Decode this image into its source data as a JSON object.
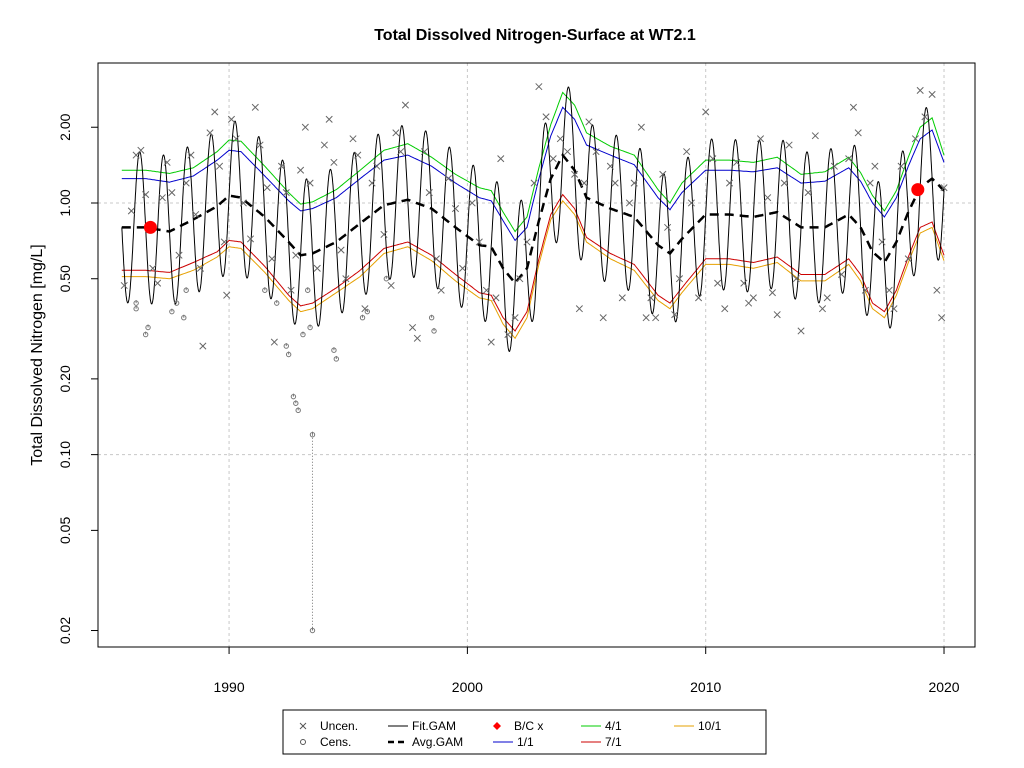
{
  "chart_data": {
    "type": "scatter",
    "title": "Total Dissolved Nitrogen-Surface at WT2.1",
    "xlabel": "",
    "ylabel": "Total Dissolved Nitrogen [mg/L]",
    "y_scale": "log",
    "xlim": [
      1984.5,
      2021.3
    ],
    "ylim": [
      0.0172,
      3.6
    ],
    "x_ticks": [
      1990,
      2000,
      2010,
      2020
    ],
    "x_tick_labels": [
      "1990",
      "2000",
      "2010",
      "2020"
    ],
    "y_ticks": [
      0.02,
      0.05,
      0.1,
      0.2,
      0.5,
      1.0,
      2.0
    ],
    "y_tick_labels": [
      "0.02",
      "0.05",
      "0.10",
      "0.20",
      "0.50",
      "1.00",
      "2.00"
    ],
    "grid": true,
    "legend_placement": "bottom",
    "legend": [
      {
        "label": "Uncen.",
        "symbol": "x",
        "color": "#555555"
      },
      {
        "label": "Cens.",
        "symbol": "circle",
        "color": "#555555"
      },
      {
        "label": "Fit.GAM",
        "symbol": "line",
        "color": "#000000"
      },
      {
        "label": "Avg.GAM",
        "symbol": "dashed",
        "color": "#000000"
      },
      {
        "label": "B/C x",
        "symbol": "diamond",
        "color": "#ff0000"
      },
      {
        "label": "1/1",
        "symbol": "line",
        "color": "#0000cc"
      },
      {
        "label": "4/1",
        "symbol": "line",
        "color": "#00cc00"
      },
      {
        "label": "7/1",
        "symbol": "line",
        "color": "#cc0000"
      },
      {
        "label": "10/1",
        "symbol": "line",
        "color": "#e6a000"
      }
    ],
    "baseline_change_points": [
      {
        "x": 1986.7,
        "y": 0.8
      },
      {
        "x": 2018.9,
        "y": 1.13
      }
    ],
    "avg_gam": {
      "x": [
        1985.5,
        1986.5,
        1987.5,
        1988.5,
        1989.5,
        1990.0,
        1990.5,
        1991.5,
        1992.5,
        1993.0,
        1993.5,
        1994.5,
        1995.5,
        1996.5,
        1997.5,
        1998.5,
        1999.5,
        2000.5,
        2001.0,
        2001.5,
        2002.0,
        2002.5,
        2003.0,
        2003.5,
        2004.0,
        2004.5,
        2005.0,
        2006.0,
        2007.0,
        2008.0,
        2008.5,
        2009.0,
        2010.0,
        2011.0,
        2012.0,
        2013.0,
        2014.0,
        2015.0,
        2016.0,
        2016.5,
        2017.0,
        2017.5,
        2018.0,
        2018.5,
        2019.0,
        2019.5,
        2020.0
      ],
      "y": [
        0.8,
        0.8,
        0.77,
        0.86,
        0.97,
        1.07,
        1.05,
        0.88,
        0.7,
        0.62,
        0.63,
        0.7,
        0.83,
        0.98,
        1.03,
        0.95,
        0.8,
        0.68,
        0.67,
        0.55,
        0.48,
        0.55,
        0.85,
        1.25,
        1.55,
        1.35,
        1.05,
        0.95,
        0.88,
        0.68,
        0.63,
        0.72,
        0.9,
        0.9,
        0.88,
        0.92,
        0.8,
        0.8,
        0.9,
        0.8,
        0.64,
        0.58,
        0.7,
        0.92,
        1.15,
        1.25,
        1.12
      ]
    },
    "series_1_1": {
      "x": [
        1985.5,
        1986.5,
        1987.5,
        1988.5,
        1989.5,
        1990.0,
        1990.5,
        1991.5,
        1992.5,
        1993.0,
        1993.5,
        1994.5,
        1995.5,
        1996.5,
        1997.5,
        1998.5,
        1999.5,
        2000.5,
        2001.0,
        2001.5,
        2002.0,
        2002.5,
        2003.0,
        2003.5,
        2004.0,
        2004.5,
        2005.0,
        2006.0,
        2007.0,
        2008.0,
        2008.5,
        2009.0,
        2010.0,
        2011.0,
        2012.0,
        2013.0,
        2014.0,
        2015.0,
        2016.0,
        2016.5,
        2017.0,
        2017.5,
        2018.0,
        2018.5,
        2019.0,
        2019.5,
        2020.0
      ],
      "y": [
        1.25,
        1.25,
        1.21,
        1.28,
        1.48,
        1.62,
        1.6,
        1.28,
        1.02,
        0.93,
        0.95,
        1.05,
        1.25,
        1.48,
        1.55,
        1.4,
        1.2,
        1.05,
        1.02,
        0.85,
        0.71,
        0.8,
        1.25,
        1.85,
        2.4,
        2.15,
        1.7,
        1.55,
        1.42,
        1.05,
        0.94,
        1.1,
        1.35,
        1.35,
        1.33,
        1.38,
        1.2,
        1.22,
        1.38,
        1.22,
        1.0,
        0.88,
        1.05,
        1.4,
        1.8,
        1.95,
        1.45
      ]
    },
    "series_4_1": {
      "x": [
        1985.5,
        1986.5,
        1987.5,
        1988.5,
        1989.5,
        1990.0,
        1990.5,
        1991.5,
        1992.5,
        1993.0,
        1993.5,
        1994.5,
        1995.5,
        1996.5,
        1997.5,
        1998.5,
        1999.5,
        2000.5,
        2001.0,
        2001.5,
        2002.0,
        2002.5,
        2003.0,
        2003.5,
        2004.0,
        2004.5,
        2005.0,
        2006.0,
        2007.0,
        2008.0,
        2008.5,
        2009.0,
        2010.0,
        2011.0,
        2012.0,
        2013.0,
        2014.0,
        2015.0,
        2016.0,
        2016.5,
        2017.0,
        2017.5,
        2018.0,
        2018.5,
        2019.0,
        2019.5,
        2020.0
      ],
      "y": [
        1.35,
        1.35,
        1.31,
        1.38,
        1.6,
        1.78,
        1.76,
        1.4,
        1.1,
        0.99,
        1.01,
        1.13,
        1.35,
        1.62,
        1.72,
        1.52,
        1.3,
        1.15,
        1.12,
        0.92,
        0.77,
        0.88,
        1.38,
        2.05,
        2.75,
        2.45,
        1.9,
        1.68,
        1.55,
        1.13,
        1.0,
        1.2,
        1.48,
        1.48,
        1.45,
        1.52,
        1.3,
        1.33,
        1.52,
        1.32,
        1.07,
        0.93,
        1.12,
        1.52,
        2.0,
        2.18,
        1.55
      ]
    },
    "series_7_1": {
      "x": [
        1985.5,
        1986.5,
        1987.5,
        1988.5,
        1989.5,
        1990.0,
        1990.5,
        1991.5,
        1992.5,
        1993.0,
        1993.5,
        1994.5,
        1995.5,
        1996.5,
        1997.5,
        1998.5,
        1999.5,
        2000.5,
        2001.0,
        2001.5,
        2002.0,
        2002.5,
        2003.0,
        2003.5,
        2004.0,
        2004.5,
        2005.0,
        2006.0,
        2007.0,
        2008.0,
        2008.5,
        2009.0,
        2010.0,
        2011.0,
        2012.0,
        2013.0,
        2014.0,
        2015.0,
        2016.0,
        2016.5,
        2017.0,
        2017.5,
        2018.0,
        2018.5,
        2019.0,
        2019.5,
        2020.0
      ],
      "y": [
        0.54,
        0.54,
        0.53,
        0.58,
        0.64,
        0.71,
        0.7,
        0.56,
        0.43,
        0.39,
        0.4,
        0.46,
        0.54,
        0.66,
        0.7,
        0.62,
        0.52,
        0.44,
        0.43,
        0.35,
        0.31,
        0.37,
        0.6,
        0.9,
        1.08,
        0.95,
        0.73,
        0.63,
        0.57,
        0.43,
        0.4,
        0.46,
        0.6,
        0.6,
        0.58,
        0.61,
        0.52,
        0.52,
        0.6,
        0.52,
        0.4,
        0.37,
        0.45,
        0.61,
        0.8,
        0.84,
        0.62
      ]
    },
    "series_10_1": {
      "x": [
        1985.5,
        1986.5,
        1987.5,
        1988.5,
        1989.5,
        1990.0,
        1990.5,
        1991.5,
        1992.5,
        1993.0,
        1993.5,
        1994.5,
        1995.5,
        1996.5,
        1997.5,
        1998.5,
        1999.5,
        2000.5,
        2001.0,
        2001.5,
        2002.0,
        2002.5,
        2003.0,
        2003.5,
        2004.0,
        2004.5,
        2005.0,
        2006.0,
        2007.0,
        2008.0,
        2008.5,
        2009.0,
        2010.0,
        2011.0,
        2012.0,
        2013.0,
        2014.0,
        2015.0,
        2016.0,
        2016.5,
        2017.0,
        2017.5,
        2018.0,
        2018.5,
        2019.0,
        2019.5,
        2020.0
      ],
      "y": [
        0.51,
        0.51,
        0.5,
        0.54,
        0.61,
        0.67,
        0.66,
        0.53,
        0.41,
        0.37,
        0.38,
        0.44,
        0.51,
        0.63,
        0.67,
        0.59,
        0.49,
        0.42,
        0.41,
        0.33,
        0.29,
        0.35,
        0.57,
        0.86,
        1.02,
        0.9,
        0.7,
        0.6,
        0.54,
        0.41,
        0.38,
        0.44,
        0.57,
        0.57,
        0.55,
        0.58,
        0.49,
        0.49,
        0.57,
        0.49,
        0.38,
        0.35,
        0.43,
        0.58,
        0.76,
        0.8,
        0.59
      ]
    },
    "fit_gam": {
      "description_note": "",
      "seasonal_amplitude_log10": 0.3,
      "seasonal_peak_phase": 0.25
    },
    "uncensored_points": [
      [
        1985.6,
        0.47
      ],
      [
        1985.9,
        0.93
      ],
      [
        1986.1,
        1.55
      ],
      [
        1986.3,
        1.62
      ],
      [
        1986.5,
        1.08
      ],
      [
        1986.8,
        0.55
      ],
      [
        1987.0,
        0.48
      ],
      [
        1987.2,
        1.05
      ],
      [
        1987.4,
        1.45
      ],
      [
        1987.6,
        1.1
      ],
      [
        1987.9,
        0.62
      ],
      [
        1988.2,
        1.2
      ],
      [
        1988.4,
        1.55
      ],
      [
        1988.6,
        0.9
      ],
      [
        1988.8,
        0.55
      ],
      [
        1988.9,
        0.27
      ],
      [
        1989.2,
        1.9
      ],
      [
        1989.4,
        2.3
      ],
      [
        1989.6,
        1.4
      ],
      [
        1989.8,
        0.7
      ],
      [
        1989.9,
        0.43
      ],
      [
        1990.1,
        2.15
      ],
      [
        1990.3,
        1.8
      ],
      [
        1990.6,
        1.0
      ],
      [
        1990.9,
        0.72
      ],
      [
        1991.1,
        2.4
      ],
      [
        1991.3,
        1.7
      ],
      [
        1991.6,
        1.15
      ],
      [
        1991.8,
        0.6
      ],
      [
        1991.9,
        0.28
      ],
      [
        1992.2,
        1.4
      ],
      [
        1992.4,
        1.1
      ],
      [
        1992.6,
        0.45
      ],
      [
        1992.8,
        0.62
      ],
      [
        1993.0,
        1.35
      ],
      [
        1993.2,
        2.0
      ],
      [
        1993.4,
        1.2
      ],
      [
        1993.7,
        0.55
      ],
      [
        1994.0,
        1.7
      ],
      [
        1994.2,
        2.15
      ],
      [
        1994.4,
        1.45
      ],
      [
        1994.7,
        0.65
      ],
      [
        1994.9,
        0.5
      ],
      [
        1995.2,
        1.8
      ],
      [
        1995.4,
        1.55
      ],
      [
        1995.7,
        0.38
      ],
      [
        1996.0,
        1.2
      ],
      [
        1996.2,
        1.4
      ],
      [
        1996.5,
        0.75
      ],
      [
        1996.8,
        0.47
      ],
      [
        1997.0,
        1.9
      ],
      [
        1997.2,
        1.6
      ],
      [
        1997.4,
        2.45
      ],
      [
        1997.7,
        0.32
      ],
      [
        1997.9,
        0.29
      ],
      [
        1998.2,
        1.6
      ],
      [
        1998.4,
        1.1
      ],
      [
        1998.7,
        0.6
      ],
      [
        1998.9,
        0.45
      ],
      [
        1999.2,
        1.25
      ],
      [
        1999.5,
        0.95
      ],
      [
        1999.8,
        0.55
      ],
      [
        2000.2,
        1.0
      ],
      [
        2000.5,
        0.7
      ],
      [
        2000.8,
        0.45
      ],
      [
        2001.0,
        0.28
      ],
      [
        2001.2,
        0.42
      ],
      [
        2001.4,
        1.5
      ],
      [
        2001.7,
        0.3
      ],
      [
        2002.0,
        0.35
      ],
      [
        2002.2,
        0.5
      ],
      [
        2002.5,
        0.7
      ],
      [
        2002.8,
        1.2
      ],
      [
        2003.0,
        2.9
      ],
      [
        2003.3,
        2.2
      ],
      [
        2003.6,
        1.5
      ],
      [
        2003.9,
        1.8
      ],
      [
        2004.2,
        1.6
      ],
      [
        2004.5,
        1.3
      ],
      [
        2004.7,
        0.38
      ],
      [
        2004.9,
        1.2
      ],
      [
        2005.1,
        2.1
      ],
      [
        2005.4,
        1.6
      ],
      [
        2005.7,
        0.35
      ],
      [
        2006.0,
        1.4
      ],
      [
        2006.2,
        1.2
      ],
      [
        2006.5,
        0.42
      ],
      [
        2006.8,
        1.0
      ],
      [
        2007.0,
        1.2
      ],
      [
        2007.3,
        2.0
      ],
      [
        2007.5,
        0.35
      ],
      [
        2007.7,
        0.42
      ],
      [
        2007.9,
        0.35
      ],
      [
        2008.2,
        1.3
      ],
      [
        2008.4,
        0.8
      ],
      [
        2008.7,
        0.36
      ],
      [
        2008.9,
        0.5
      ],
      [
        2009.2,
        1.6
      ],
      [
        2009.4,
        1.0
      ],
      [
        2009.7,
        0.42
      ],
      [
        2010.0,
        2.3
      ],
      [
        2010.3,
        1.5
      ],
      [
        2010.5,
        0.48
      ],
      [
        2010.8,
        0.38
      ],
      [
        2011.0,
        1.2
      ],
      [
        2011.3,
        1.45
      ],
      [
        2011.6,
        0.48
      ],
      [
        2011.8,
        0.4
      ],
      [
        2012.0,
        0.42
      ],
      [
        2012.3,
        1.8
      ],
      [
        2012.6,
        1.05
      ],
      [
        2012.8,
        0.44
      ],
      [
        2013.0,
        0.36
      ],
      [
        2013.3,
        1.2
      ],
      [
        2013.5,
        1.7
      ],
      [
        2013.8,
        0.5
      ],
      [
        2014.0,
        0.31
      ],
      [
        2014.3,
        1.1
      ],
      [
        2014.6,
        1.85
      ],
      [
        2014.9,
        0.38
      ],
      [
        2015.1,
        0.42
      ],
      [
        2015.4,
        1.4
      ],
      [
        2015.7,
        0.52
      ],
      [
        2016.0,
        1.5
      ],
      [
        2016.2,
        2.4
      ],
      [
        2016.4,
        1.9
      ],
      [
        2016.7,
        0.45
      ],
      [
        2016.9,
        1.2
      ],
      [
        2017.1,
        1.4
      ],
      [
        2017.4,
        0.7
      ],
      [
        2017.7,
        0.45
      ],
      [
        2017.9,
        0.38
      ],
      [
        2018.2,
        1.4
      ],
      [
        2018.5,
        0.6
      ],
      [
        2018.8,
        1.8
      ],
      [
        2019.0,
        2.8
      ],
      [
        2019.2,
        2.2
      ],
      [
        2019.5,
        2.7
      ],
      [
        2019.7,
        0.45
      ],
      [
        2019.9,
        0.35
      ],
      [
        2020.0,
        1.15
      ]
    ],
    "censored_points": [
      [
        1986.1,
        0.38
      ],
      [
        1986.1,
        0.4
      ],
      [
        1986.5,
        0.3
      ],
      [
        1986.6,
        0.32
      ],
      [
        1987.6,
        0.37
      ],
      [
        1987.8,
        0.4
      ],
      [
        1988.1,
        0.35
      ],
      [
        1988.2,
        0.45
      ],
      [
        1991.5,
        0.45
      ],
      [
        1992.0,
        0.4
      ],
      [
        1992.4,
        0.27
      ],
      [
        1992.5,
        0.25
      ],
      [
        1992.7,
        0.17
      ],
      [
        1992.8,
        0.16
      ],
      [
        1992.9,
        0.15
      ],
      [
        1993.1,
        0.3
      ],
      [
        1993.3,
        0.45
      ],
      [
        1993.4,
        0.32
      ],
      [
        1993.5,
        0.12
      ],
      [
        1993.5,
        0.02
      ],
      [
        1994.4,
        0.26
      ],
      [
        1994.5,
        0.24
      ],
      [
        1995.6,
        0.35
      ],
      [
        1995.8,
        0.37
      ],
      [
        1996.6,
        0.5
      ],
      [
        1998.5,
        0.35
      ],
      [
        1998.6,
        0.31
      ]
    ]
  }
}
